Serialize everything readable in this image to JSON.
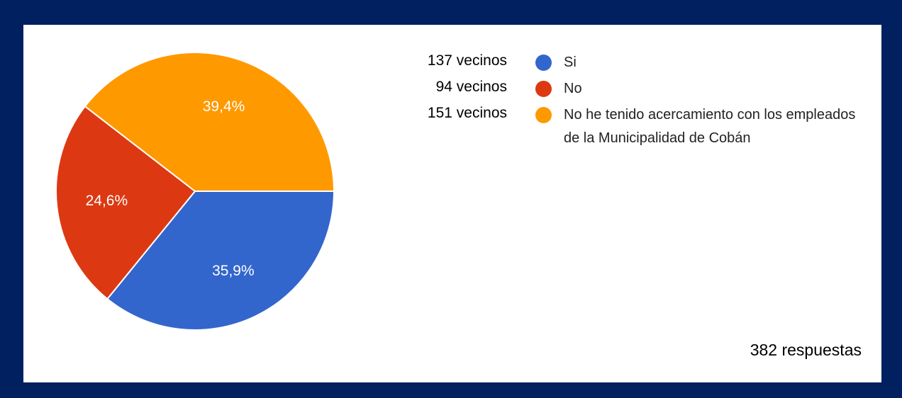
{
  "chart_data": {
    "type": "pie",
    "slices": [
      {
        "label": "Si",
        "count_label": "137 vecinos",
        "value": 137,
        "percent_label": "35,9%",
        "color": "#3366CC"
      },
      {
        "label": "No",
        "count_label": "94 vecinos",
        "value": 94,
        "percent_label": "24,6%",
        "color": "#DC3912"
      },
      {
        "label": "No he tenido acercamiento con los empleados de la Municipalidad de Cobán",
        "count_label": "151 vecinos",
        "value": 151,
        "percent_label": "39,4%",
        "color": "#FF9900"
      }
    ],
    "total_label": "382 respuestas",
    "legend_position": "right"
  },
  "colors": {
    "frame": "#002060",
    "panel": "#FFFFFF"
  }
}
